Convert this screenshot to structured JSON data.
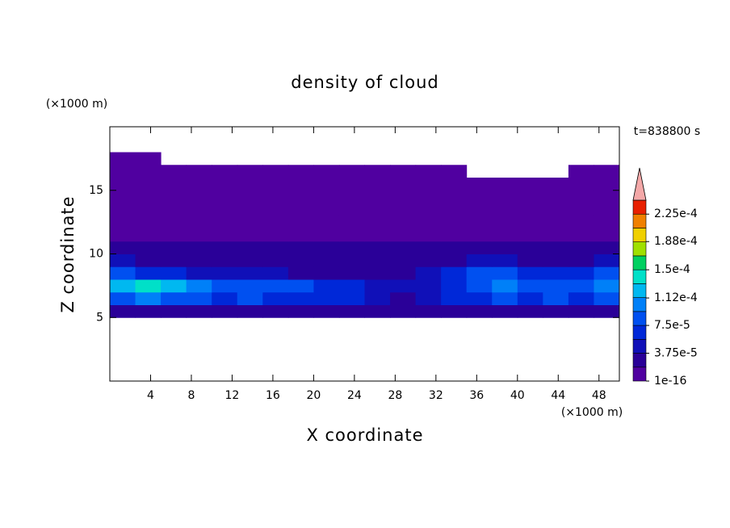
{
  "chart_data": {
    "type": "contour",
    "title": "density of cloud",
    "xlabel": "X coordinate",
    "ylabel": "Z coordinate",
    "xunit": "(×1000 m)",
    "yunit": "(×1000 m)",
    "annotation": "t=838800 s",
    "xlim": [
      0,
      50
    ],
    "ylim": [
      0,
      20
    ],
    "xticks": [
      4,
      8,
      12,
      16,
      20,
      24,
      28,
      32,
      36,
      40,
      44,
      48
    ],
    "yticks": [
      5,
      10,
      15
    ],
    "x": [
      1.25,
      3.75,
      6.25,
      8.75,
      11.25,
      13.75,
      16.25,
      18.75,
      21.25,
      23.75,
      26.25,
      28.75,
      31.25,
      33.75,
      36.25,
      38.75,
      41.25,
      43.75,
      46.25,
      48.75
    ],
    "y": [
      5.5,
      6.5,
      7.5,
      8.5,
      9.5,
      10.5,
      11.5,
      12.5,
      13.5,
      14.5,
      15.5,
      16.5,
      17.5
    ],
    "z": [
      [
        3e-05,
        3e-05,
        3e-05,
        2.5e-05,
        2.5e-05,
        3e-05,
        2.5e-05,
        2.5e-05,
        2.5e-05,
        2.5e-05,
        2.5e-05,
        2e-05,
        2.5e-05,
        2.5e-05,
        3e-05,
        3e-05,
        3e-05,
        2.5e-05,
        2.5e-05,
        3e-05
      ],
      [
        9e-05,
        0.0001,
        9e-05,
        8e-05,
        7e-05,
        8e-05,
        7e-05,
        6e-05,
        7e-05,
        6e-05,
        5e-05,
        3e-05,
        4e-05,
        6e-05,
        7e-05,
        8e-05,
        7e-05,
        8e-05,
        7e-05,
        9e-05
      ],
      [
        0.00013,
        0.00014,
        0.00012,
        0.0001,
        9e-05,
        9e-05,
        8e-05,
        8e-05,
        7e-05,
        6e-05,
        5e-05,
        4e-05,
        5e-05,
        7e-05,
        9e-05,
        0.0001,
        9e-05,
        8e-05,
        8e-05,
        0.00011
      ],
      [
        8e-05,
        7e-05,
        6e-05,
        5e-05,
        4e-05,
        4e-05,
        4e-05,
        3e-05,
        3e-05,
        3e-05,
        3e-05,
        3e-05,
        4e-05,
        6e-05,
        8e-05,
        9e-05,
        7e-05,
        6e-05,
        6e-05,
        8e-05
      ],
      [
        4e-05,
        3e-05,
        3e-05,
        2e-05,
        2e-05,
        2e-05,
        2e-05,
        2e-05,
        2e-05,
        2e-05,
        2e-05,
        2e-05,
        2e-05,
        3e-05,
        4e-05,
        4e-05,
        3e-05,
        3e-05,
        3e-05,
        4e-05
      ],
      [
        2e-05,
        2e-05,
        2e-05,
        2e-05,
        2e-05,
        2e-05,
        2e-05,
        2e-05,
        2e-05,
        2e-05,
        2e-05,
        2e-05,
        2e-05,
        2e-05,
        2e-05,
        2e-05,
        2e-05,
        2e-05,
        2e-05,
        2e-05
      ],
      [
        1e-05,
        1e-05,
        1e-05,
        1e-05,
        1e-05,
        1e-05,
        1e-05,
        1e-05,
        1e-05,
        1e-05,
        1e-05,
        1e-05,
        1e-05,
        1e-05,
        1e-05,
        1e-05,
        1e-05,
        1e-05,
        1e-05,
        1e-05
      ],
      [
        5e-06,
        5e-06,
        5e-06,
        5e-06,
        5e-06,
        5e-06,
        5e-06,
        5e-06,
        5e-06,
        5e-06,
        5e-06,
        5e-06,
        5e-06,
        5e-06,
        5e-06,
        5e-06,
        5e-06,
        5e-06,
        5e-06,
        5e-06
      ],
      [
        5e-06,
        5e-06,
        5e-06,
        5e-06,
        5e-06,
        5e-06,
        5e-06,
        5e-06,
        5e-06,
        5e-06,
        5e-06,
        5e-06,
        5e-06,
        5e-06,
        5e-06,
        5e-06,
        5e-06,
        5e-06,
        5e-06,
        5e-06
      ],
      [
        5e-06,
        5e-06,
        5e-06,
        5e-06,
        5e-06,
        5e-06,
        5e-06,
        5e-06,
        5e-06,
        5e-06,
        5e-06,
        5e-06,
        5e-06,
        5e-06,
        5e-06,
        5e-06,
        5e-06,
        5e-06,
        5e-06,
        5e-06
      ],
      [
        5e-06,
        5e-06,
        5e-06,
        5e-06,
        5e-06,
        5e-06,
        5e-06,
        5e-06,
        5e-06,
        5e-06,
        5e-06,
        5e-06,
        5e-06,
        5e-06,
        5e-06,
        5e-06,
        5e-06,
        5e-06,
        5e-06,
        5e-06
      ],
      [
        5e-06,
        5e-06,
        5e-06,
        5e-06,
        5e-06,
        5e-06,
        5e-06,
        5e-06,
        5e-06,
        5e-06,
        5e-06,
        5e-06,
        5e-06,
        5e-06,
        null,
        null,
        null,
        null,
        5e-06,
        5e-06
      ],
      [
        5e-06,
        5e-06,
        null,
        null,
        null,
        null,
        null,
        null,
        null,
        null,
        null,
        null,
        null,
        null,
        null,
        null,
        null,
        null,
        null,
        null
      ]
    ],
    "levels": [
      1e-16,
      1.875e-05,
      3.75e-05,
      5.625e-05,
      7.5e-05,
      9.375e-05,
      0.0001125,
      0.00013125,
      0.00015,
      0.00016875,
      0.0001875,
      0.00020625,
      0.000225,
      0.00024375
    ],
    "colors": [
      "#5000a0",
      "#2a0098",
      "#1010b8",
      "#0028d8",
      "#0050f0",
      "#0080f8",
      "#00b8f0",
      "#00e0c8",
      "#00d060",
      "#a0e000",
      "#f0d000",
      "#f08000",
      "#e82000"
    ],
    "extend_color": "#f4a8a8",
    "colorbar_ticks": [
      1e-16,
      {
        "value": 3.75e-05,
        "label": "3.75e-5"
      },
      {
        "value": 7.5e-05,
        "label": "7.5e-5"
      },
      {
        "value": 0.000112,
        "label": "1.12e-4"
      },
      {
        "value": 0.00015,
        "label": "1.5e-4"
      },
      {
        "value": 0.000188,
        "label": "1.88e-4"
      },
      {
        "value": 0.000225,
        "label": "2.25e-4"
      }
    ]
  }
}
